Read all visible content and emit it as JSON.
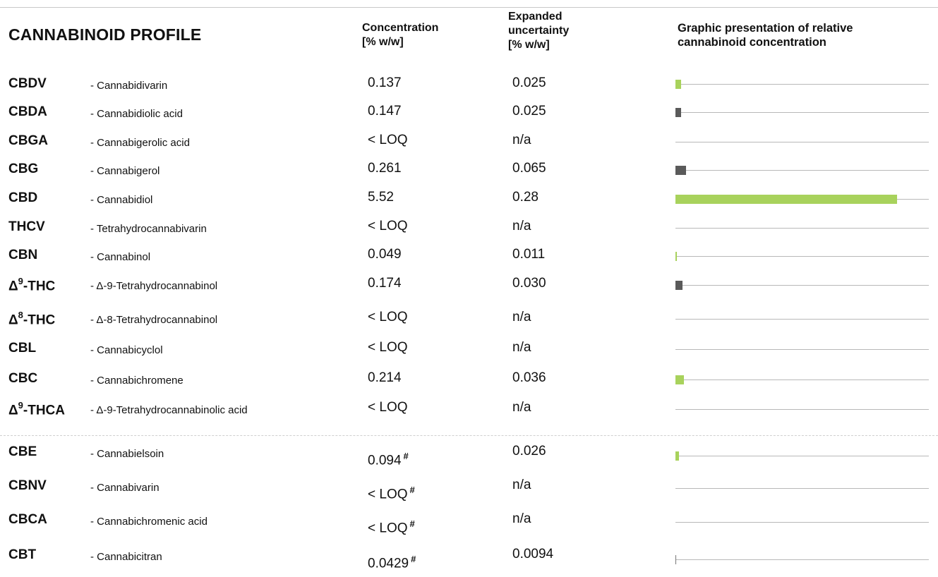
{
  "header": {
    "title": "CANNABINOID PROFILE",
    "conc_line1": "Concentration",
    "conc_line2": "[% w/w]",
    "unc_line1": "Expanded",
    "unc_line2": "uncertainty",
    "unc_line3": "[% w/w]",
    "graph_line1": "Graphic presentation of relative",
    "graph_line2": "cannabinoid concentration"
  },
  "colors": {
    "green": "#a8d25c",
    "gray": "#5a5a5a",
    "line": "#b8b8b8"
  },
  "rows": [
    {
      "abbr": "CBDV",
      "sup": "",
      "abbr_suffix": "",
      "name": "- Cannabidivarin",
      "conc": "0.137",
      "hash": "",
      "unc": "0.025",
      "value": 0.137,
      "color": "green"
    },
    {
      "abbr": "CBDA",
      "sup": "",
      "abbr_suffix": "",
      "name": "- Cannabidiolic acid",
      "conc": "0.147",
      "hash": "",
      "unc": "0.025",
      "value": 0.147,
      "color": "gray"
    },
    {
      "abbr": "CBGA",
      "sup": "",
      "abbr_suffix": "",
      "name": "- Cannabigerolic acid",
      "conc": "< LOQ",
      "hash": "",
      "unc": "n/a",
      "value": 0,
      "color": "gray"
    },
    {
      "abbr": "CBG",
      "sup": "",
      "abbr_suffix": "",
      "name": "- Cannabigerol",
      "conc": "0.261",
      "hash": "",
      "unc": "0.065",
      "value": 0.261,
      "color": "gray"
    },
    {
      "abbr": "CBD",
      "sup": "",
      "abbr_suffix": "",
      "name": "- Cannabidiol",
      "conc": "5.52",
      "hash": "",
      "unc": "0.28",
      "value": 5.52,
      "color": "green"
    },
    {
      "abbr": "THCV",
      "sup": "",
      "abbr_suffix": "",
      "name": "- Tetrahydrocannabivarin",
      "conc": "< LOQ",
      "hash": "",
      "unc": "n/a",
      "value": 0,
      "color": "gray"
    },
    {
      "abbr": "CBN",
      "sup": "",
      "abbr_suffix": "",
      "name": "- Cannabinol",
      "conc": "0.049",
      "hash": "",
      "unc": "0.011",
      "value": 0.049,
      "color": "green"
    },
    {
      "abbr": "Δ",
      "sup": "9",
      "abbr_suffix": "-THC",
      "name": "- Δ-9-Tetrahydrocannabinol",
      "conc": "0.174",
      "hash": "",
      "unc": "0.030",
      "value": 0.174,
      "color": "gray"
    },
    {
      "abbr": "Δ",
      "sup": "8",
      "abbr_suffix": "-THC",
      "name": "- Δ-8-Tetrahydrocannabinol",
      "conc": "< LOQ",
      "hash": "",
      "unc": "n/a",
      "value": 0,
      "color": "gray"
    },
    {
      "abbr": "CBL",
      "sup": "",
      "abbr_suffix": "",
      "name": "- Cannabicyclol",
      "conc": "< LOQ",
      "hash": "",
      "unc": "n/a",
      "value": 0,
      "color": "gray"
    },
    {
      "abbr": "CBC",
      "sup": "",
      "abbr_suffix": "",
      "name": "- Cannabichromene",
      "conc": "0.214",
      "hash": "",
      "unc": "0.036",
      "value": 0.214,
      "color": "green"
    },
    {
      "abbr": "Δ",
      "sup": "9",
      "abbr_suffix": "-THCA",
      "name": "- Δ-9-Tetrahydrocannabinolic acid",
      "conc": "< LOQ",
      "hash": "",
      "unc": "n/a",
      "value": 0,
      "color": "gray"
    },
    {
      "abbr": "CBE",
      "sup": "",
      "abbr_suffix": "",
      "name": "- Cannabielsoin",
      "conc": "0.094",
      "hash": "#",
      "unc": "0.026",
      "value": 0.094,
      "color": "green"
    },
    {
      "abbr": "CBNV",
      "sup": "",
      "abbr_suffix": "",
      "name": "- Cannabivarin",
      "conc": "< LOQ",
      "hash": "#",
      "unc": "n/a",
      "value": 0,
      "color": "gray"
    },
    {
      "abbr": "CBCA",
      "sup": "",
      "abbr_suffix": "",
      "name": "- Cannabichromenic acid",
      "conc": "< LOQ",
      "hash": "#",
      "unc": "n/a",
      "value": 0,
      "color": "gray"
    },
    {
      "abbr": "CBT",
      "sup": "",
      "abbr_suffix": "",
      "name": "- Cannabicitran",
      "conc": "0.0429",
      "hash": "#",
      "unc": "0.0094",
      "value": 0.0429,
      "color": "gray"
    }
  ]
}
